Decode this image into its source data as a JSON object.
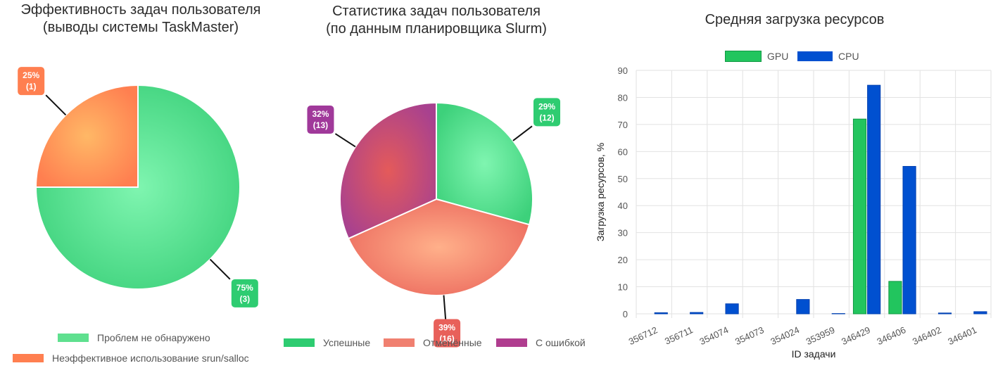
{
  "charts": {
    "pie1": {
      "title_lines": [
        "Эффективность задач пользователя",
        "(выводы системы TaskMaster)"
      ]
    },
    "pie2": {
      "title_lines": [
        "Статистика задач пользователя",
        "(по данным планировщика Slurm)"
      ]
    },
    "bar": {
      "title": "Средняя загрузка ресурсов"
    }
  },
  "colors": {
    "green": "#2ecc71",
    "orange": "#ff7f50",
    "salmon": "#f08070",
    "purple": "#b03d8f",
    "gpu": "#22c55e",
    "cpu": "#0050d0"
  },
  "chart_data": [
    {
      "type": "pie",
      "title": "Эффективность задач пользователя (выводы системы TaskMaster)",
      "slices": [
        {
          "name": "Проблем не обнаружено",
          "value": 3,
          "percent": "75%",
          "count": "(3)"
        },
        {
          "name": "Неэффективное использование srun/salloc",
          "value": 1,
          "percent": "25%",
          "count": "(1)"
        }
      ],
      "legend_position": "bottom"
    },
    {
      "type": "pie",
      "title": "Статистика задач пользователя (по данным планировщика Slurm)",
      "slices": [
        {
          "name": "Успешные",
          "value": 12,
          "percent": "29%",
          "count": "(12)"
        },
        {
          "name": "Отменённые",
          "value": 16,
          "percent": "39%",
          "count": "(16)"
        },
        {
          "name": "С ошибкой",
          "value": 13,
          "percent": "32%",
          "count": "(13)"
        }
      ],
      "legend_position": "bottom"
    },
    {
      "type": "bar",
      "title": "Средняя загрузка ресурсов",
      "xlabel": "ID задачи",
      "ylabel": "Загрузка ресурсов, %",
      "ylim": [
        0,
        90
      ],
      "yticks": [
        "0",
        "10",
        "20",
        "30",
        "40",
        "50",
        "60",
        "70",
        "80",
        "90"
      ],
      "categories": [
        "356712",
        "356711",
        "354074",
        "354073",
        "354024",
        "353959",
        "346429",
        "346406",
        "346402",
        "346401"
      ],
      "series": [
        {
          "name": "GPU",
          "values": [
            0,
            0,
            0,
            0,
            0,
            0,
            72,
            12,
            0,
            0
          ]
        },
        {
          "name": "CPU",
          "values": [
            0.4,
            0.5,
            3.7,
            0,
            5.3,
            0.1,
            84.5,
            54.5,
            0.3,
            0.8
          ]
        }
      ],
      "grid": true,
      "legend_position": "top"
    }
  ]
}
